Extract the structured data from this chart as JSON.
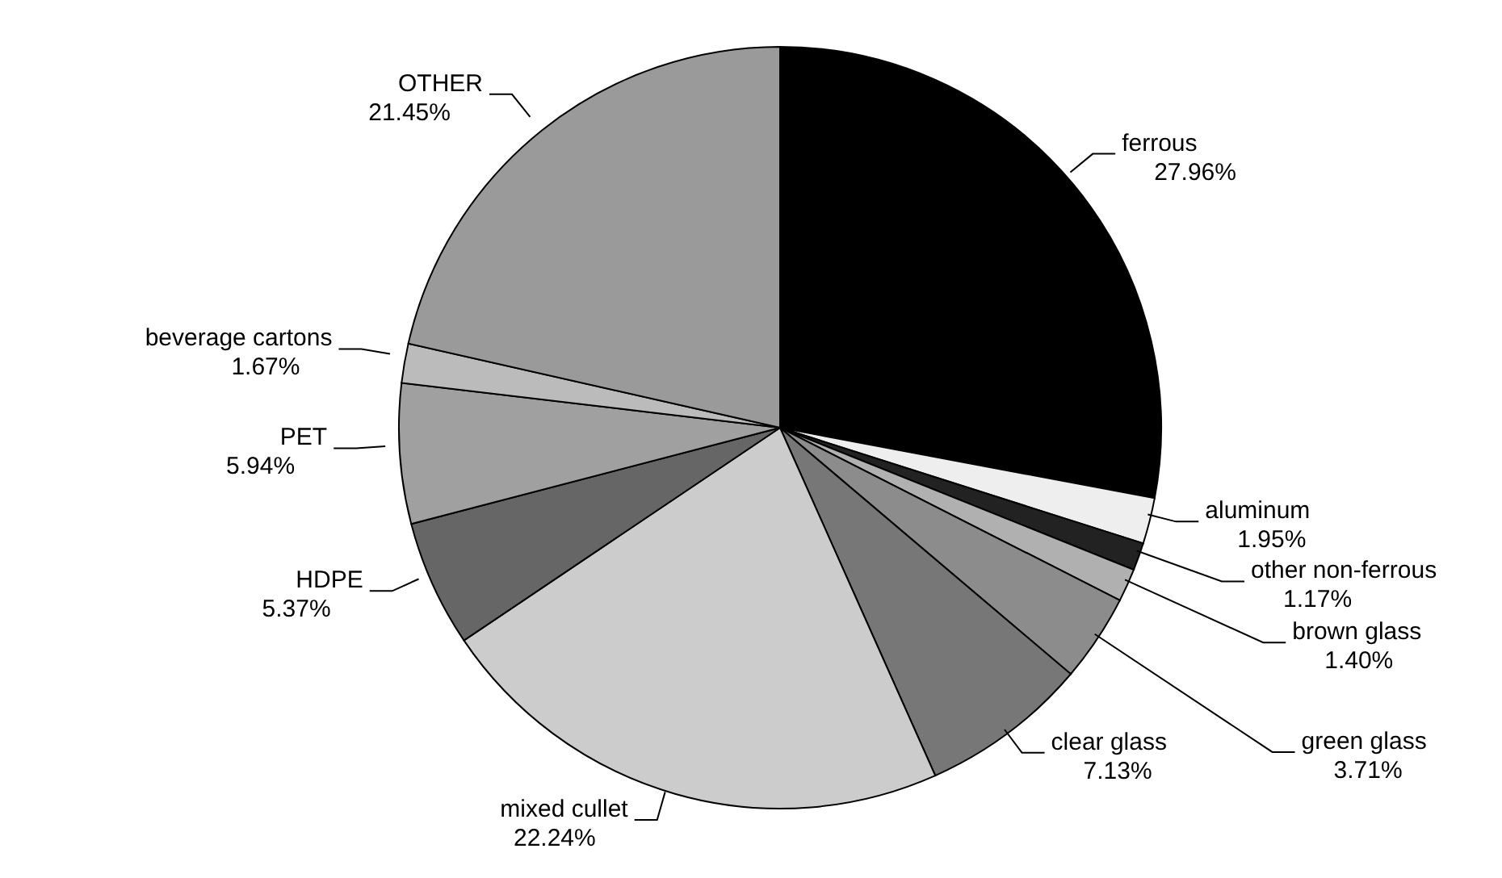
{
  "chart_data": {
    "type": "pie",
    "categories": [
      "ferrous",
      "aluminum",
      "other non-ferrous",
      "brown glass",
      "green glass",
      "clear glass",
      "mixed cullet",
      "HDPE",
      "PET",
      "beverage cartons",
      "OTHER"
    ],
    "values": [
      27.96,
      1.95,
      1.17,
      1.4,
      3.71,
      7.13,
      22.24,
      5.37,
      5.94,
      1.67,
      21.45
    ],
    "value_labels": [
      "27.96%",
      "1.95%",
      "1.17%",
      "1.40%",
      "3.71%",
      "7.13%",
      "22.24%",
      "5.37%",
      "5.94%",
      "1.67%",
      "21.45%"
    ],
    "colors": [
      "#000000",
      "#eeeeee",
      "#222222",
      "#b0b0b0",
      "#8c8c8c",
      "#777777",
      "#cccccc",
      "#666666",
      "#a0a0a0",
      "#bbbbbb",
      "#9a9a9a"
    ],
    "legend": false
  }
}
